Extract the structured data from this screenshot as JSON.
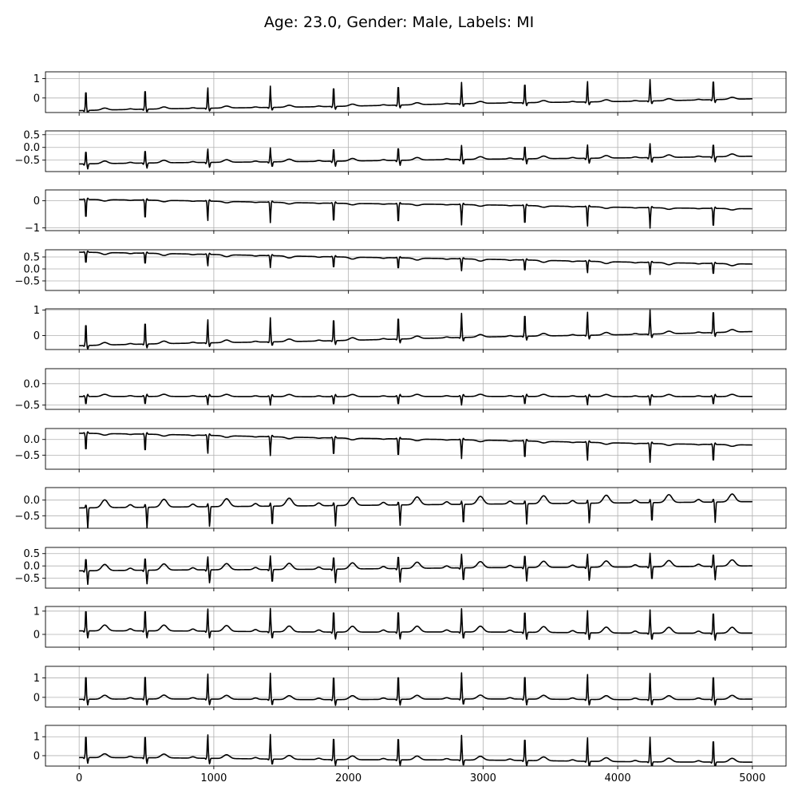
{
  "title": "Age: 23.0, Gender: Male, Labels: MI",
  "chart_data": {
    "type": "line",
    "title": "Age: 23.0, Gender: Male, Labels: MI",
    "xlim": [
      -250,
      5250
    ],
    "x_ticks": [
      0,
      1000,
      2000,
      3000,
      4000,
      5000
    ],
    "x_tick_labels": [
      "0",
      "1000",
      "2000",
      "3000",
      "4000",
      "5000"
    ],
    "grid": true,
    "line_color": "#000000",
    "grid_color": "#b0b0b0",
    "beat_positions": [
      50,
      490,
      955,
      1420,
      1890,
      2370,
      2840,
      3310,
      3775,
      4240,
      4710
    ],
    "panels": [
      {
        "ylim": [
          -0.75,
          1.35
        ],
        "y_ticks": [
          0,
          1
        ],
        "y_tick_labels": [
          "0",
          "1"
        ],
        "base_start": -0.65,
        "base_end": -0.05,
        "r": 1.1,
        "s": -0.15,
        "t": 0.1,
        "q": -0.05
      },
      {
        "ylim": [
          -0.95,
          0.65
        ],
        "y_ticks": [
          -0.5,
          0,
          0.5
        ],
        "y_tick_labels": [
          "−0.5",
          "0.0",
          "0.5"
        ],
        "base_start": -0.65,
        "base_end": -0.35,
        "r": 0.55,
        "s": -0.2,
        "t": 0.1,
        "q": -0.05
      },
      {
        "ylim": [
          -1.1,
          0.4
        ],
        "y_ticks": [
          -1,
          0
        ],
        "y_tick_labels": [
          "−1",
          "0"
        ],
        "base_start": 0.05,
        "base_end": -0.3,
        "r": -0.75,
        "s": 0.05,
        "t": -0.05,
        "q": 0.02
      },
      {
        "ylim": [
          -0.9,
          0.8
        ],
        "y_ticks": [
          -0.5,
          0,
          0.5
        ],
        "y_tick_labels": [
          "−0.5",
          "0.0",
          "0.5"
        ],
        "base_start": 0.7,
        "base_end": 0.2,
        "r": -0.5,
        "s": 0.05,
        "t": -0.08,
        "q": 0.02
      },
      {
        "ylim": [
          -0.55,
          1.05
        ],
        "y_ticks": [
          0,
          1
        ],
        "y_tick_labels": [
          "0",
          "1"
        ],
        "base_start": -0.4,
        "base_end": 0.15,
        "r": 0.95,
        "s": -0.15,
        "t": 0.1,
        "q": -0.03
      },
      {
        "ylim": [
          -0.6,
          0.35
        ],
        "y_ticks": [
          -0.5,
          0
        ],
        "y_tick_labels": [
          "−0.5",
          "0.0"
        ],
        "base_start": -0.3,
        "base_end": -0.3,
        "r": -0.2,
        "s": 0.05,
        "t": 0.05,
        "q": 0.02
      },
      {
        "ylim": [
          -0.95,
          0.35
        ],
        "y_ticks": [
          -0.5,
          0
        ],
        "y_tick_labels": [
          "−0.5",
          "0.0"
        ],
        "base_start": 0.2,
        "base_end": -0.18,
        "r": -0.6,
        "s": 0.05,
        "t": -0.05,
        "q": 0.02
      },
      {
        "ylim": [
          -0.9,
          0.4
        ],
        "y_ticks": [
          -0.5,
          0
        ],
        "y_tick_labels": [
          "−0.5",
          "0.0"
        ],
        "base_start": -0.25,
        "base_end": -0.05,
        "r": 0.1,
        "s": -0.65,
        "t": 0.25,
        "q": 0.0
      },
      {
        "ylim": [
          -0.9,
          0.75
        ],
        "y_ticks": [
          -0.5,
          0,
          0.5
        ],
        "y_tick_labels": [
          "−0.5",
          "0.0",
          "0.5"
        ],
        "base_start": -0.2,
        "base_end": 0.0,
        "r": 0.55,
        "s": -0.55,
        "t": 0.25,
        "q": -0.05
      },
      {
        "ylim": [
          -0.55,
          1.2
        ],
        "y_ticks": [
          0,
          1
        ],
        "y_tick_labels": [
          "0",
          "1"
        ],
        "base_start": 0.15,
        "base_end": 0.05,
        "r": 1.0,
        "s": -0.3,
        "t": 0.25,
        "q": -0.05
      },
      {
        "ylim": [
          -0.5,
          1.6
        ],
        "y_ticks": [
          0,
          1
        ],
        "y_tick_labels": [
          "0",
          "1"
        ],
        "base_start": -0.1,
        "base_end": -0.1,
        "r": 1.35,
        "s": -0.3,
        "t": 0.2,
        "q": -0.05
      },
      {
        "ylim": [
          -0.55,
          1.6
        ],
        "y_ticks": [
          0,
          1
        ],
        "y_tick_labels": [
          "0",
          "1"
        ],
        "base_start": -0.1,
        "base_end": -0.35,
        "r": 1.3,
        "s": -0.3,
        "t": 0.2,
        "q": -0.05
      }
    ]
  }
}
